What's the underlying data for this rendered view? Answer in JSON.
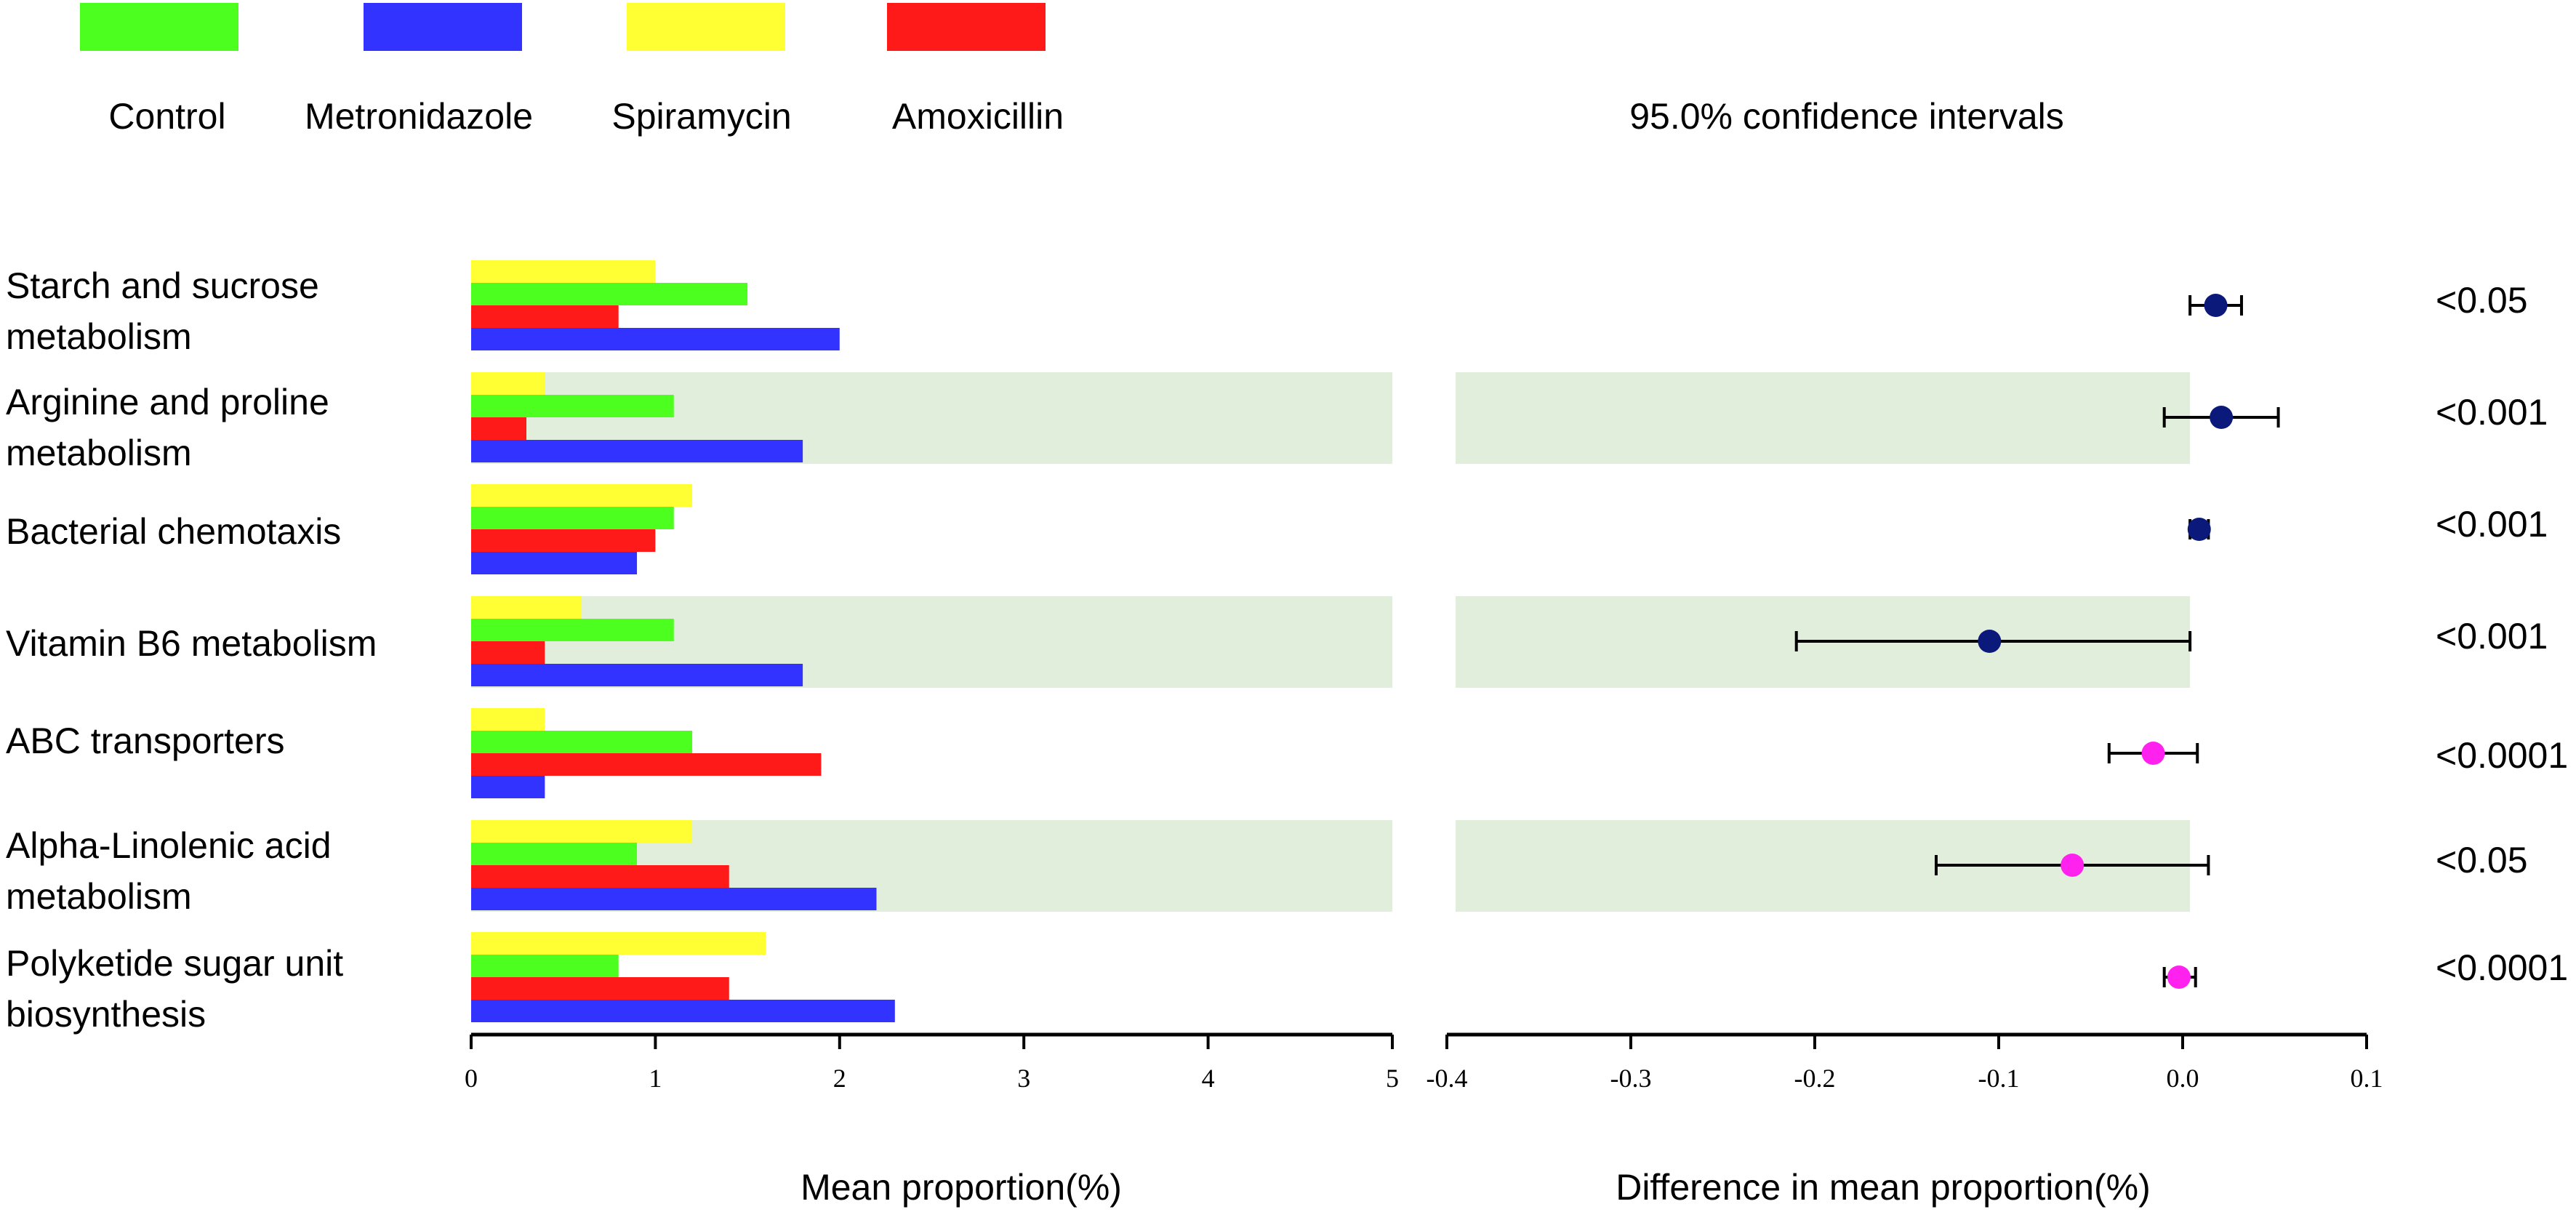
{
  "chart_data": {
    "type": "bar",
    "legend": {
      "items": [
        {
          "name": "Control",
          "color": "#4cff1e"
        },
        {
          "name": "Metronidazole",
          "color": "#3333ff"
        },
        {
          "name": "Spiramycin",
          "color": "#ffff33"
        },
        {
          "name": "Amoxicillin",
          "color": "#ff1a1a"
        }
      ]
    },
    "categories": [
      "Starch and sucrose metabolism",
      "Arginine and proline metabolism",
      "Bacterial chemotaxis",
      "Vitamin B6 metabolism",
      "ABC transporters",
      "Alpha-Linolenic acid metabolism",
      "Polyketide sugar unit biosynthesis"
    ],
    "category_lines": [
      [
        "Starch and sucrose",
        "metabolism"
      ],
      [
        "Arginine and proline",
        "metabolism"
      ],
      [
        "Bacterial chemotaxis"
      ],
      [
        "Vitamin B6 metabolism"
      ],
      [
        "ABC transporters"
      ],
      [
        "Alpha-Linolenic acid",
        "metabolism"
      ],
      [
        "Polyketide sugar unit",
        "biosynthesis"
      ]
    ],
    "series": [
      {
        "name": "Spiramycin",
        "color": "#ffff33",
        "values": [
          1.0,
          0.4,
          1.2,
          0.6,
          0.4,
          1.2,
          1.6
        ]
      },
      {
        "name": "Control",
        "color": "#4cff1e",
        "values": [
          1.5,
          1.1,
          1.1,
          1.1,
          1.2,
          0.9,
          0.8
        ]
      },
      {
        "name": "Amoxicillin",
        "color": "#ff1a1a",
        "values": [
          0.8,
          0.3,
          1.0,
          0.4,
          1.9,
          1.4,
          1.4
        ]
      },
      {
        "name": "Metronidazole",
        "color": "#3333ff",
        "values": [
          2.0,
          1.8,
          0.9,
          1.8,
          0.4,
          2.2,
          2.3
        ]
      }
    ],
    "bar_axis": {
      "label": "Mean proportion(%)",
      "min": 0,
      "max": 5,
      "ticks": [
        "0",
        "1",
        "2",
        "3",
        "4",
        "5"
      ]
    },
    "ci_panel": {
      "title": "95.0% confidence intervals",
      "label": "Difference in mean proportion(%)",
      "min": -0.4,
      "max": 0.1,
      "ticks": [
        "-0.4",
        "-0.3",
        "-0.2",
        "-0.1",
        "0.0",
        "0.1"
      ],
      "points": [
        {
          "estimate": 0.018,
          "low": 0.004,
          "high": 0.032,
          "color": "#0b1a7a"
        },
        {
          "estimate": 0.021,
          "low": -0.01,
          "high": 0.052,
          "color": "#0b1a7a"
        },
        {
          "estimate": 0.009,
          "low": 0.004,
          "high": 0.014,
          "color": "#0b1a7a"
        },
        {
          "estimate": -0.105,
          "low": -0.21,
          "high": 0.004,
          "color": "#0b1a7a"
        },
        {
          "estimate": -0.016,
          "low": -0.04,
          "high": 0.008,
          "color": "#ff22ee"
        },
        {
          "estimate": -0.06,
          "low": -0.134,
          "high": 0.014,
          "color": "#ff22ee"
        },
        {
          "estimate": -0.002,
          "low": -0.01,
          "high": 0.007,
          "color": "#ff22ee"
        }
      ]
    },
    "p_values": [
      "<0.05",
      "<0.001",
      "<0.001",
      "<0.001",
      "<0.0001",
      "<0.05",
      "<0.0001"
    ],
    "shaded_rows": [
      1,
      3,
      5
    ],
    "shade_color": "#e2eedc"
  }
}
